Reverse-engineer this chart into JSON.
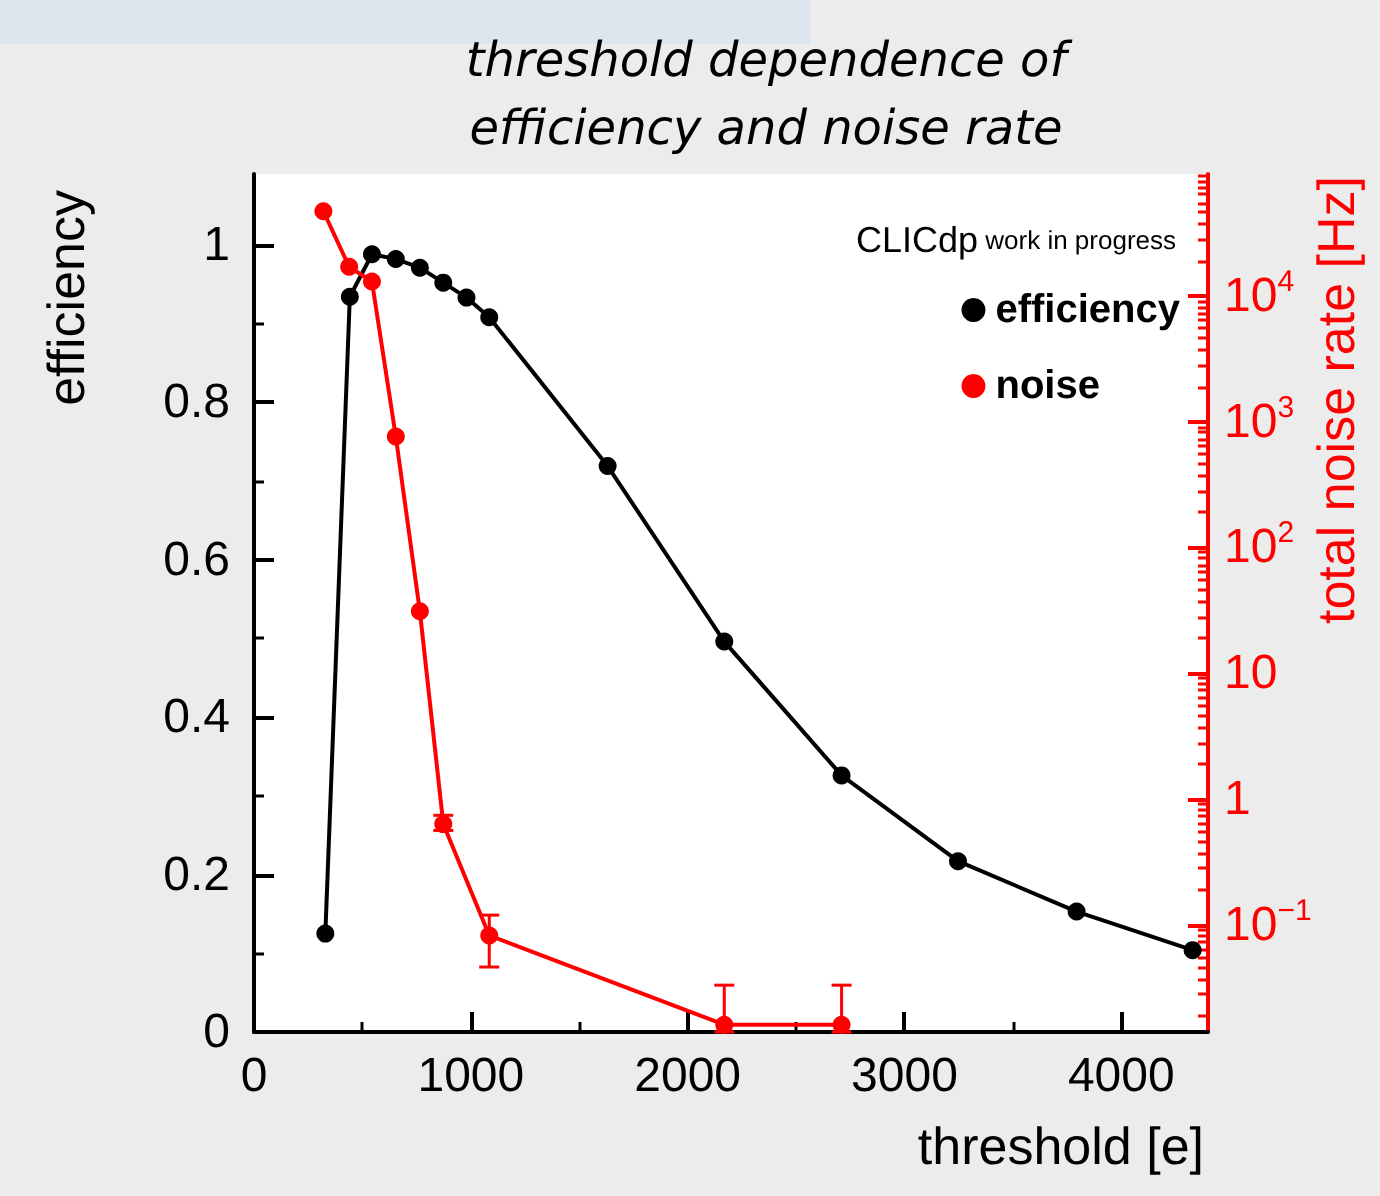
{
  "chart_data": {
    "type": "line",
    "title": "threshold dependence of\nefficiency and noise rate",
    "xlabel": "threshold [e]",
    "ylabel": "efficiency",
    "y2label": "total noise rate [Hz]",
    "annotations": [
      "CLICdp work in progress"
    ],
    "xlim": [
      0,
      4400
    ],
    "xticks": [
      0,
      1000,
      2000,
      3000,
      4000
    ],
    "ylim": [
      0,
      1.09
    ],
    "yticks": [
      0,
      0.2,
      0.4,
      0.6,
      0.8,
      1
    ],
    "y2lim": [
      0.014,
      93000
    ],
    "y2ticks": [
      {
        "value": 0.1,
        "label": "10$^{−1}$"
      },
      1,
      10,
      {
        "value": 100,
        "label": "10$^{2}$"
      },
      {
        "value": 1000,
        "label": "10$^{3}$"
      },
      {
        "value": 10000,
        "label": "10$^{4}$"
      }
    ],
    "log": "y2",
    "legend": "top right",
    "marker": "circle",
    "line_style": "solid",
    "grid": false,
    "series": [
      {
        "name": "efficiency",
        "color": "#000000",
        "x": [
          329,
          442,
          544,
          654,
          765,
          873,
          980,
          1085,
          1631,
          2169,
          2710,
          3247,
          3794,
          4329
        ],
        "values": [
          0.125,
          0.934,
          0.988,
          0.982,
          0.971,
          0.952,
          0.933,
          0.908,
          0.719,
          0.496,
          0.326,
          0.217,
          0.153,
          0.104
        ]
      },
      {
        "name": "noise",
        "color": "#ff0000",
        "axis": "y2",
        "x": [
          320,
          439,
          544,
          654,
          765,
          873,
          1085,
          2169,
          2710
        ],
        "values": [
          47000,
          17000,
          13000,
          760,
          31,
          0.63,
          0.082,
          0.016,
          0.016
        ],
        "errors": [
          null,
          null,
          null,
          null,
          null,
          [
            0.56,
            0.74
          ],
          [
            0.046,
            0.119
          ],
          [
            0.014,
            0.033
          ],
          [
            0.014,
            0.033
          ]
        ]
      }
    ]
  }
}
